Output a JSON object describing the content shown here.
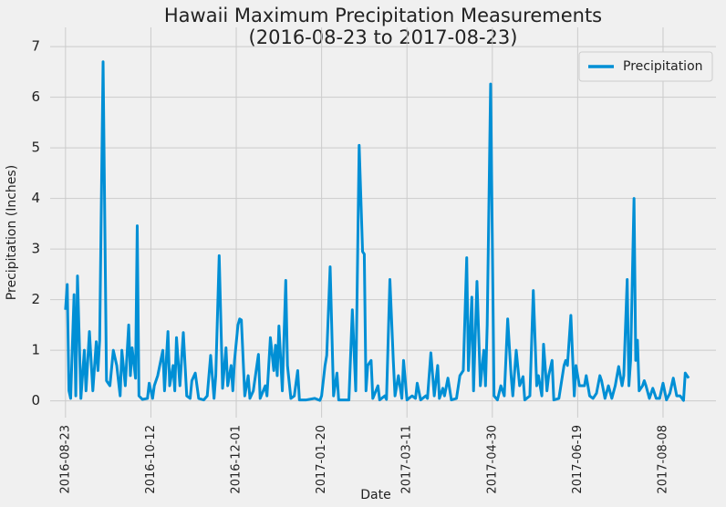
{
  "chart_data": {
    "type": "line",
    "title": [
      "Hawaii Maximum Precipitation Measurements",
      "(2016-08-23 to 2017-08-23)"
    ],
    "xlabel": "Date",
    "ylabel": "Precipitation (Inches)",
    "x": [
      "2016-08-23",
      "2016-08-24",
      "2016-08-25",
      "2016-08-26",
      "2016-08-28",
      "2016-08-29",
      "2016-08-30",
      "2016-09-01",
      "2016-09-03",
      "2016-09-04",
      "2016-09-06",
      "2016-09-08",
      "2016-09-10",
      "2016-09-11",
      "2016-09-12",
      "2016-09-14",
      "2016-09-16",
      "2016-09-18",
      "2016-09-20",
      "2016-09-22",
      "2016-09-24",
      "2016-09-25",
      "2016-09-27",
      "2016-09-29",
      "2016-09-30",
      "2016-10-01",
      "2016-10-03",
      "2016-10-04",
      "2016-10-05",
      "2016-10-07",
      "2016-10-10",
      "2016-10-11",
      "2016-10-13",
      "2016-10-14",
      "2016-10-16",
      "2016-10-19",
      "2016-10-20",
      "2016-10-22",
      "2016-10-23",
      "2016-10-25",
      "2016-10-26",
      "2016-10-27",
      "2016-10-29",
      "2016-10-31",
      "2016-11-02",
      "2016-11-04",
      "2016-11-05",
      "2016-11-07",
      "2016-11-09",
      "2016-11-12",
      "2016-11-14",
      "2016-11-16",
      "2016-11-18",
      "2016-11-19",
      "2016-11-21",
      "2016-11-23",
      "2016-11-25",
      "2016-11-26",
      "2016-11-28",
      "2016-11-29",
      "2016-11-30",
      "2016-12-02",
      "2016-12-03",
      "2016-12-04",
      "2016-12-06",
      "2016-12-08",
      "2016-12-09",
      "2016-12-11",
      "2016-12-14",
      "2016-12-15",
      "2016-12-18",
      "2016-12-19",
      "2016-12-21",
      "2016-12-23",
      "2016-12-24",
      "2016-12-25",
      "2016-12-26",
      "2016-12-28",
      "2016-12-30",
      "2016-12-31",
      "2017-01-02",
      "2017-01-04",
      "2017-01-06",
      "2017-01-07",
      "2017-01-11",
      "2017-01-16",
      "2017-01-19",
      "2017-01-20",
      "2017-01-22",
      "2017-01-23",
      "2017-01-25",
      "2017-01-27",
      "2017-01-29",
      "2017-01-30",
      "2017-02-05",
      "2017-02-07",
      "2017-02-09",
      "2017-02-11",
      "2017-02-13",
      "2017-02-14",
      "2017-02-15",
      "2017-02-16",
      "2017-02-18",
      "2017-02-19",
      "2017-02-22",
      "2017-02-23",
      "2017-02-26",
      "2017-02-27",
      "2017-03-01",
      "2017-03-03",
      "2017-03-04",
      "2017-03-06",
      "2017-03-08",
      "2017-03-09",
      "2017-03-11",
      "2017-03-14",
      "2017-03-16",
      "2017-03-17",
      "2017-03-19",
      "2017-03-22",
      "2017-03-23",
      "2017-03-25",
      "2017-03-27",
      "2017-03-29",
      "2017-03-30",
      "2017-04-01",
      "2017-04-02",
      "2017-04-04",
      "2017-04-06",
      "2017-04-09",
      "2017-04-11",
      "2017-04-13",
      "2017-04-15",
      "2017-04-16",
      "2017-04-18",
      "2017-04-19",
      "2017-04-21",
      "2017-04-23",
      "2017-04-25",
      "2017-04-26",
      "2017-04-27",
      "2017-04-29",
      "2017-05-01",
      "2017-05-03",
      "2017-05-05",
      "2017-05-07",
      "2017-05-09",
      "2017-05-11",
      "2017-05-12",
      "2017-05-14",
      "2017-05-16",
      "2017-05-18",
      "2017-05-19",
      "2017-05-22",
      "2017-05-24",
      "2017-05-26",
      "2017-05-27",
      "2017-05-29",
      "2017-05-30",
      "2017-06-01",
      "2017-06-02",
      "2017-06-04",
      "2017-06-05",
      "2017-06-08",
      "2017-06-11",
      "2017-06-12",
      "2017-06-13",
      "2017-06-15",
      "2017-06-17",
      "2017-06-18",
      "2017-06-20",
      "2017-06-23",
      "2017-06-24",
      "2017-06-26",
      "2017-06-28",
      "2017-06-30",
      "2017-07-02",
      "2017-07-03",
      "2017-07-05",
      "2017-07-07",
      "2017-07-09",
      "2017-07-11",
      "2017-07-13",
      "2017-07-15",
      "2017-07-16",
      "2017-07-18",
      "2017-07-19",
      "2017-07-20",
      "2017-07-22",
      "2017-07-23",
      "2017-07-24",
      "2017-07-25",
      "2017-07-27",
      "2017-07-28",
      "2017-07-29",
      "2017-07-31",
      "2017-08-02",
      "2017-08-04",
      "2017-08-06",
      "2017-08-08",
      "2017-08-10",
      "2017-08-12",
      "2017-08-14",
      "2017-08-16",
      "2017-08-18",
      "2017-08-20",
      "2017-08-21",
      "2017-08-23"
    ],
    "series": [
      {
        "name": "Precipitation",
        "color": "#008fd5",
        "values": [
          1.8,
          2.3,
          0.2,
          0.05,
          2.1,
          0.1,
          2.47,
          0.05,
          1.0,
          0.2,
          1.37,
          0.2,
          1.17,
          0.6,
          1.2,
          6.7,
          0.4,
          0.3,
          1.0,
          0.7,
          0.1,
          1.0,
          0.3,
          1.5,
          0.5,
          1.05,
          0.45,
          3.46,
          0.1,
          0.03,
          0.05,
          0.35,
          0.05,
          0.3,
          0.5,
          1.0,
          0.2,
          1.37,
          0.3,
          0.7,
          0.2,
          1.25,
          0.3,
          1.35,
          0.1,
          0.05,
          0.4,
          0.55,
          0.05,
          0.02,
          0.1,
          0.9,
          0.05,
          0.5,
          2.87,
          0.25,
          1.05,
          0.3,
          0.7,
          0.2,
          0.8,
          1.5,
          1.62,
          1.6,
          0.1,
          0.5,
          0.05,
          0.2,
          0.92,
          0.05,
          0.3,
          0.1,
          1.25,
          0.6,
          1.1,
          0.5,
          1.48,
          0.2,
          2.38,
          0.7,
          0.05,
          0.1,
          0.6,
          0.02,
          0.02,
          0.05,
          0.01,
          0.1,
          0.7,
          0.9,
          2.65,
          0.1,
          0.55,
          0.02,
          0.02,
          1.8,
          0.2,
          5.05,
          2.95,
          2.9,
          0.2,
          0.7,
          0.8,
          0.05,
          0.3,
          0.02,
          0.1,
          0.03,
          2.4,
          0.8,
          0.1,
          0.5,
          0.05,
          0.8,
          0.02,
          0.1,
          0.05,
          0.35,
          0.02,
          0.1,
          0.05,
          0.95,
          0.1,
          0.7,
          0.05,
          0.25,
          0.1,
          0.45,
          0.02,
          0.05,
          0.5,
          0.6,
          2.83,
          0.6,
          2.05,
          0.2,
          2.36,
          0.3,
          1.0,
          0.3,
          1.5,
          6.26,
          0.1,
          0.02,
          0.3,
          0.1,
          1.62,
          0.5,
          0.1,
          1.0,
          0.3,
          0.48,
          0.02,
          0.1,
          2.18,
          0.3,
          0.5,
          0.1,
          1.12,
          0.2,
          0.5,
          0.8,
          0.02,
          0.05,
          0.7,
          0.8,
          0.7,
          1.69,
          0.1,
          0.7,
          0.3,
          0.3,
          0.5,
          0.1,
          0.05,
          0.15,
          0.5,
          0.4,
          0.05,
          0.3,
          0.05,
          0.3,
          0.68,
          0.3,
          0.5,
          2.4,
          0.3,
          0.8,
          4.0,
          0.8,
          1.2,
          0.2,
          0.3,
          0.4,
          0.3,
          0.05,
          0.25,
          0.05,
          0.05,
          0.35,
          0.02,
          0.15,
          0.45,
          0.1,
          0.1,
          0.01,
          0.55,
          0.45
        ]
      }
    ],
    "xlim": [
      "2016-08-14",
      "2017-09-08"
    ],
    "xticks": [
      "2016-08-23",
      "2016-10-12",
      "2016-12-01",
      "2017-01-20",
      "2017-03-11",
      "2017-04-30",
      "2017-06-19",
      "2017-08-08"
    ],
    "ylim": [
      -0.33,
      7.38
    ],
    "yticks": [
      0,
      1,
      2,
      3,
      4,
      5,
      6,
      7
    ],
    "grid": true,
    "legend": "upper right"
  }
}
